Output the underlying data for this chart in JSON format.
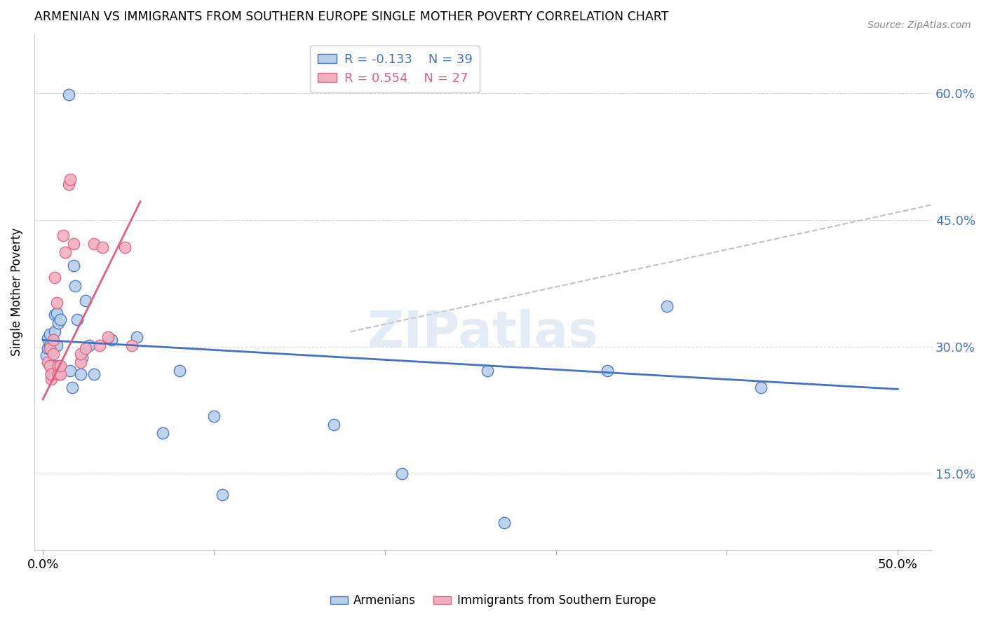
{
  "title": "ARMENIAN VS IMMIGRANTS FROM SOUTHERN EUROPE SINGLE MOTHER POVERTY CORRELATION CHART",
  "source": "Source: ZipAtlas.com",
  "ylabel": "Single Mother Poverty",
  "ytick_labels": [
    "60.0%",
    "45.0%",
    "30.0%",
    "15.0%"
  ],
  "ytick_values": [
    0.6,
    0.45,
    0.3,
    0.15
  ],
  "xtick_values": [
    0.0,
    0.1,
    0.2,
    0.3,
    0.4,
    0.5
  ],
  "xlim": [
    -0.005,
    0.52
  ],
  "ylim": [
    0.06,
    0.67
  ],
  "watermark": "ZIPatlas",
  "legend_blue_r": "-0.133",
  "legend_blue_n": "39",
  "legend_pink_r": "0.554",
  "legend_pink_n": "27",
  "blue_color": "#b8d0ea",
  "pink_color": "#f2b0c0",
  "blue_line_color": "#4472c4",
  "pink_line_color": "#e06080",
  "blue_scatter": [
    [
      0.002,
      0.29
    ],
    [
      0.003,
      0.298
    ],
    [
      0.003,
      0.31
    ],
    [
      0.004,
      0.302
    ],
    [
      0.004,
      0.315
    ],
    [
      0.005,
      0.268
    ],
    [
      0.005,
      0.296
    ],
    [
      0.006,
      0.278
    ],
    [
      0.006,
      0.305
    ],
    [
      0.007,
      0.318
    ],
    [
      0.007,
      0.338
    ],
    [
      0.008,
      0.302
    ],
    [
      0.008,
      0.34
    ],
    [
      0.009,
      0.328
    ],
    [
      0.01,
      0.332
    ],
    [
      0.015,
      0.598
    ],
    [
      0.016,
      0.272
    ],
    [
      0.017,
      0.252
    ],
    [
      0.018,
      0.396
    ],
    [
      0.019,
      0.372
    ],
    [
      0.02,
      0.332
    ],
    [
      0.022,
      0.268
    ],
    [
      0.023,
      0.288
    ],
    [
      0.025,
      0.355
    ],
    [
      0.027,
      0.302
    ],
    [
      0.03,
      0.268
    ],
    [
      0.04,
      0.308
    ],
    [
      0.055,
      0.312
    ],
    [
      0.07,
      0.198
    ],
    [
      0.08,
      0.272
    ],
    [
      0.1,
      0.218
    ],
    [
      0.105,
      0.125
    ],
    [
      0.17,
      0.208
    ],
    [
      0.21,
      0.15
    ],
    [
      0.26,
      0.272
    ],
    [
      0.27,
      0.092
    ],
    [
      0.33,
      0.272
    ],
    [
      0.365,
      0.348
    ],
    [
      0.42,
      0.252
    ]
  ],
  "pink_scatter": [
    [
      0.003,
      0.282
    ],
    [
      0.004,
      0.278
    ],
    [
      0.004,
      0.298
    ],
    [
      0.005,
      0.262
    ],
    [
      0.005,
      0.268
    ],
    [
      0.006,
      0.308
    ],
    [
      0.006,
      0.292
    ],
    [
      0.007,
      0.382
    ],
    [
      0.008,
      0.352
    ],
    [
      0.009,
      0.268
    ],
    [
      0.009,
      0.278
    ],
    [
      0.01,
      0.268
    ],
    [
      0.01,
      0.278
    ],
    [
      0.012,
      0.432
    ],
    [
      0.013,
      0.412
    ],
    [
      0.015,
      0.492
    ],
    [
      0.016,
      0.498
    ],
    [
      0.018,
      0.422
    ],
    [
      0.022,
      0.282
    ],
    [
      0.022,
      0.292
    ],
    [
      0.025,
      0.298
    ],
    [
      0.03,
      0.422
    ],
    [
      0.033,
      0.302
    ],
    [
      0.035,
      0.418
    ],
    [
      0.038,
      0.312
    ],
    [
      0.048,
      0.418
    ],
    [
      0.052,
      0.302
    ]
  ],
  "blue_trend_x": [
    0.0,
    0.5
  ],
  "blue_trend_y": [
    0.308,
    0.25
  ],
  "pink_trend_x": [
    0.0,
    0.057
  ],
  "pink_trend_y": [
    0.238,
    0.472
  ],
  "dashed_trend_x": [
    0.18,
    0.52
  ],
  "dashed_trend_y": [
    0.318,
    0.468
  ]
}
